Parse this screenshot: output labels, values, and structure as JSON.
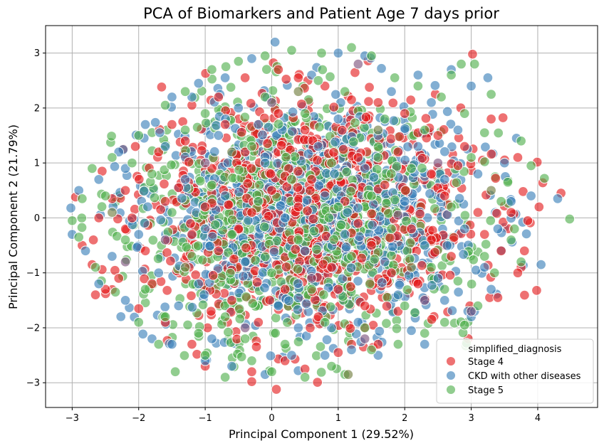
{
  "chart_data": {
    "type": "scatter",
    "title": "PCA of Biomarkers and Patient Age 7 days prior",
    "xlabel": "Principal Component 1 (29.52%)",
    "ylabel": "Principal Component 2 (21.79%)",
    "xlim": [
      -3.4,
      4.9
    ],
    "ylim": [
      -3.45,
      3.5
    ],
    "xticks": [
      -3,
      -2,
      -1,
      0,
      1,
      2,
      3,
      4
    ],
    "yticks": [
      -3,
      -2,
      -1,
      0,
      1,
      2,
      3
    ],
    "xtick_labels": [
      "−3",
      "−2",
      "−1",
      "0",
      "1",
      "2",
      "3",
      "4"
    ],
    "ytick_labels": [
      "−3",
      "−2",
      "−1",
      "0",
      "1",
      "2",
      "3"
    ],
    "grid": true,
    "legend": {
      "title": "simplified_diagnosis",
      "placement": "lower-right"
    },
    "series": [
      {
        "name": "Stage 4",
        "color": "#e41a1c",
        "points": [
          [
            4.35,
            0.45
          ],
          [
            4.02,
            0.2
          ],
          [
            3.78,
            0.48
          ],
          [
            3.6,
            0.1
          ],
          [
            3.85,
            -0.05
          ],
          [
            3.45,
            -0.6
          ],
          [
            3.8,
            -0.6
          ],
          [
            3.75,
            -0.9
          ],
          [
            3.4,
            -1.45
          ],
          [
            3.7,
            -1.0
          ],
          [
            3.02,
            2.98
          ],
          [
            3.3,
            1.8
          ],
          [
            3.7,
            1.1
          ],
          [
            2.98,
            -1.6
          ],
          [
            2.5,
            1.5
          ],
          [
            2.2,
            1.55
          ],
          [
            2.4,
            0.8
          ],
          [
            2.1,
            -0.2
          ],
          [
            2.2,
            -1.2
          ],
          [
            1.9,
            -1.7
          ],
          [
            1.6,
            -2.3
          ],
          [
            1.2,
            -2.3
          ],
          [
            1.0,
            -2.45
          ],
          [
            0.5,
            -2.75
          ],
          [
            0.2,
            -2.6
          ],
          [
            -0.3,
            -2.8
          ],
          [
            0.07,
            -3.12
          ],
          [
            -0.3,
            -2.98
          ],
          [
            -1.0,
            -2.7
          ],
          [
            -1.2,
            -2.3
          ],
          [
            -1.6,
            -1.9
          ],
          [
            -2.0,
            -1.65
          ],
          [
            -2.3,
            -1.1
          ],
          [
            -2.7,
            -0.85
          ],
          [
            -2.5,
            -1.3
          ],
          [
            -2.65,
            -1.4
          ],
          [
            -2.85,
            -0.5
          ],
          [
            -2.95,
            0.38
          ],
          [
            -2.55,
            0.85
          ],
          [
            -2.4,
            0.35
          ],
          [
            -2.2,
            0.5
          ],
          [
            -2.05,
            1.3
          ],
          [
            -1.7,
            1.2
          ],
          [
            -1.5,
            1.7
          ],
          [
            -1.2,
            2.05
          ],
          [
            -0.8,
            2.2
          ],
          [
            -0.4,
            2.55
          ],
          [
            0.1,
            2.7
          ],
          [
            0.4,
            2.55
          ],
          [
            0.8,
            2.4
          ],
          [
            1.2,
            2.15
          ],
          [
            1.6,
            2.1
          ],
          [
            -1.4,
            0.55
          ],
          [
            -1.6,
            0.3
          ],
          [
            -1.2,
            -0.3
          ],
          [
            -0.8,
            -0.6
          ],
          [
            -0.9,
            0.9
          ],
          [
            -0.4,
            1.2
          ],
          [
            0.0,
            0.5
          ],
          [
            0.3,
            -0.4
          ],
          [
            0.6,
            0.7
          ],
          [
            0.9,
            -0.9
          ],
          [
            1.1,
            0.3
          ],
          [
            1.3,
            1.1
          ],
          [
            1.5,
            -0.5
          ],
          [
            1.7,
            0.6
          ],
          [
            1.9,
            1.2
          ],
          [
            2.6,
            0.4
          ],
          [
            2.7,
            -0.7
          ],
          [
            2.8,
            0.95
          ],
          [
            -0.6,
            -1.5
          ],
          [
            -0.2,
            -1.9
          ],
          [
            0.2,
            -1.3
          ],
          [
            0.7,
            -1.8
          ],
          [
            1.0,
            -1.3
          ],
          [
            1.4,
            -1.6
          ],
          [
            -1.9,
            -0.6
          ],
          [
            -2.1,
            0.0
          ],
          [
            -1.0,
            0.2
          ],
          [
            0.5,
            1.6
          ],
          [
            0.1,
            1.9
          ],
          [
            -0.3,
            0.1
          ],
          [
            -0.5,
            -0.2
          ],
          [
            0.4,
            0.2
          ],
          [
            1.8,
            -1.0
          ],
          [
            2.4,
            -0.4
          ],
          [
            3.1,
            0.1
          ],
          [
            3.2,
            -0.3
          ],
          [
            -1.3,
            1.4
          ],
          [
            -0.7,
            1.7
          ],
          [
            1.3,
            -0.1
          ],
          [
            -1.8,
            -1.2
          ],
          [
            -2.6,
            0.0
          ],
          [
            2.0,
            1.9
          ],
          [
            2.9,
            1.3
          ]
        ]
      },
      {
        "name": "CKD with other diseases",
        "color": "#377eb8",
        "points": [
          [
            4.3,
            0.35
          ],
          [
            4.05,
            -0.85
          ],
          [
            3.68,
            1.45
          ],
          [
            3.5,
            1.0
          ],
          [
            3.25,
            2.55
          ],
          [
            3.0,
            2.4
          ],
          [
            2.7,
            2.7
          ],
          [
            2.2,
            2.6
          ],
          [
            1.65,
            2.72
          ],
          [
            1.4,
            2.95
          ],
          [
            1.0,
            3.0
          ],
          [
            0.05,
            3.2
          ],
          [
            -0.3,
            2.9
          ],
          [
            -0.7,
            2.55
          ],
          [
            -1.1,
            2.45
          ],
          [
            -1.5,
            2.2
          ],
          [
            -1.9,
            1.7
          ],
          [
            -2.3,
            1.2
          ],
          [
            -2.6,
            0.7
          ],
          [
            -2.9,
            0.5
          ],
          [
            -3.02,
            0.18
          ],
          [
            -3.0,
            -0.3
          ],
          [
            -2.8,
            -0.6
          ],
          [
            -2.6,
            -1.2
          ],
          [
            -2.2,
            -1.5
          ],
          [
            -1.8,
            -2.2
          ],
          [
            -1.5,
            -2.3
          ],
          [
            -1.0,
            -2.6
          ],
          [
            -0.6,
            -2.7
          ],
          [
            -0.1,
            -2.85
          ],
          [
            0.3,
            -2.5
          ],
          [
            0.8,
            -2.5
          ],
          [
            1.2,
            -2.4
          ],
          [
            1.6,
            -2.5
          ],
          [
            2.1,
            -2.05
          ],
          [
            2.3,
            -2.3
          ],
          [
            2.6,
            -1.5
          ],
          [
            2.95,
            -1.7
          ],
          [
            3.2,
            -0.9
          ],
          [
            3.4,
            -0.2
          ],
          [
            3.6,
            0.3
          ],
          [
            3.9,
            0.4
          ],
          [
            -1.6,
            1.3
          ],
          [
            -1.3,
            0.7
          ],
          [
            -1.0,
            -0.2
          ],
          [
            -0.7,
            0.4
          ],
          [
            -0.4,
            -0.8
          ],
          [
            -0.1,
            1.0
          ],
          [
            0.2,
            0.0
          ],
          [
            0.5,
            -0.6
          ],
          [
            0.8,
            0.4
          ],
          [
            1.1,
            -0.3
          ],
          [
            1.4,
            0.9
          ],
          [
            1.7,
            -0.8
          ],
          [
            2.0,
            0.3
          ],
          [
            2.3,
            -0.5
          ],
          [
            2.6,
            0.7
          ],
          [
            2.9,
            -0.2
          ],
          [
            -2.0,
            -0.3
          ],
          [
            -1.7,
            -1.0
          ],
          [
            -1.4,
            -1.6
          ],
          [
            -1.1,
            -1.2
          ],
          [
            -0.8,
            1.5
          ],
          [
            -0.5,
            2.0
          ],
          [
            -0.2,
            1.7
          ],
          [
            0.1,
            -1.6
          ],
          [
            0.4,
            -2.0
          ],
          [
            0.7,
            1.3
          ],
          [
            1.0,
            1.8
          ],
          [
            1.3,
            -1.9
          ],
          [
            1.6,
            1.5
          ],
          [
            1.9,
            -1.4
          ],
          [
            2.2,
            1.3
          ],
          [
            2.5,
            -1.1
          ],
          [
            2.8,
            1.6
          ],
          [
            3.1,
            0.8
          ],
          [
            3.0,
            -1.8
          ],
          [
            -2.4,
            -0.7
          ],
          [
            -2.2,
            0.9
          ],
          [
            -1.2,
            2.2
          ],
          [
            0.6,
            2.6
          ],
          [
            1.8,
            2.3
          ],
          [
            2.4,
            2.1
          ],
          [
            -0.9,
            -2.2
          ],
          [
            0.9,
            -2.0
          ],
          [
            3.3,
            -1.3
          ],
          [
            3.05,
            -1.7
          ]
        ]
      },
      {
        "name": "Stage 5",
        "color": "#4daf4a",
        "points": [
          [
            4.48,
            -0.02
          ],
          [
            4.1,
            0.72
          ],
          [
            3.9,
            0.95
          ],
          [
            3.75,
            1.4
          ],
          [
            3.75,
            -0.8
          ],
          [
            3.6,
            -0.4
          ],
          [
            3.55,
            0.65
          ],
          [
            3.3,
            2.25
          ],
          [
            3.2,
            1.55
          ],
          [
            3.05,
            2.8
          ],
          [
            2.85,
            2.8
          ],
          [
            2.7,
            2.6
          ],
          [
            2.55,
            2.2
          ],
          [
            2.2,
            2.4
          ],
          [
            1.85,
            2.55
          ],
          [
            1.5,
            2.95
          ],
          [
            1.2,
            3.1
          ],
          [
            0.75,
            3.0
          ],
          [
            0.3,
            3.05
          ],
          [
            -0.1,
            2.95
          ],
          [
            -0.5,
            2.85
          ],
          [
            -0.9,
            2.7
          ],
          [
            -1.3,
            2.3
          ],
          [
            -1.6,
            2.05
          ],
          [
            -2.0,
            1.5
          ],
          [
            -2.4,
            1.1
          ],
          [
            -2.7,
            0.9
          ],
          [
            -2.85,
            0.35
          ],
          [
            -3.0,
            -0.05
          ],
          [
            -2.9,
            -0.35
          ],
          [
            -2.65,
            -0.9
          ],
          [
            -2.35,
            -1.35
          ],
          [
            -2.0,
            -1.9
          ],
          [
            -1.7,
            -2.3
          ],
          [
            -1.45,
            -2.8
          ],
          [
            -1.0,
            -2.5
          ],
          [
            -0.7,
            -2.9
          ],
          [
            -0.3,
            -2.6
          ],
          [
            0.0,
            -2.8
          ],
          [
            0.5,
            -2.9
          ],
          [
            0.9,
            -2.7
          ],
          [
            1.1,
            -2.85
          ],
          [
            1.5,
            -2.4
          ],
          [
            1.9,
            -2.3
          ],
          [
            2.3,
            -2.1
          ],
          [
            2.6,
            -1.9
          ],
          [
            2.9,
            -1.95
          ],
          [
            3.1,
            -1.6
          ],
          [
            3.35,
            -1.0
          ],
          [
            -1.8,
            0.8
          ],
          [
            -1.5,
            0.1
          ],
          [
            -1.2,
            -0.7
          ],
          [
            -0.9,
            0.6
          ],
          [
            -0.6,
            -0.3
          ],
          [
            -0.3,
            1.3
          ],
          [
            0.0,
            -1.0
          ],
          [
            0.3,
            0.7
          ],
          [
            0.6,
            -1.3
          ],
          [
            0.9,
            1.0
          ],
          [
            1.2,
            -0.7
          ],
          [
            1.5,
            0.4
          ],
          [
            1.8,
            -0.2
          ],
          [
            2.1,
            0.9
          ],
          [
            2.4,
            -0.9
          ],
          [
            2.7,
            0.2
          ],
          [
            3.0,
            1.1
          ],
          [
            -2.2,
            -0.4
          ],
          [
            -1.9,
            -1.3
          ],
          [
            -1.6,
            -1.8
          ],
          [
            -1.3,
            1.6
          ],
          [
            -1.0,
            1.9
          ],
          [
            -0.7,
            -1.8
          ],
          [
            -0.4,
            -2.2
          ],
          [
            -0.1,
            2.2
          ],
          [
            0.2,
            -2.3
          ],
          [
            0.5,
            1.9
          ],
          [
            0.8,
            -1.9
          ],
          [
            1.1,
            2.3
          ],
          [
            1.4,
            -2.0
          ],
          [
            1.7,
            1.8
          ],
          [
            2.0,
            -1.6
          ],
          [
            2.3,
            1.6
          ],
          [
            2.6,
            -1.3
          ],
          [
            2.9,
            1.9
          ],
          [
            3.2,
            -0.7
          ],
          [
            3.45,
            0.3
          ],
          [
            -2.5,
            0.4
          ],
          [
            -2.1,
            1.0
          ],
          [
            -0.2,
            0.3
          ],
          [
            0.4,
            -0.4
          ],
          [
            1.0,
            0.2
          ],
          [
            1.6,
            1.1
          ],
          [
            -1.1,
            -2.1
          ],
          [
            0.7,
            2.5
          ],
          [
            3.65,
            -0.2
          ],
          [
            2.8,
            -1.15
          ]
        ]
      },
      {
        "name": "",
        "color": "#7a4f7a",
        "points": [
          [
            3.0,
            -1.7
          ],
          [
            2.3,
            -1.5
          ],
          [
            1.3,
            2.8
          ],
          [
            -0.4,
            -2.0
          ],
          [
            -2.2,
            -0.8
          ],
          [
            1.9,
            0.05
          ],
          [
            -1.0,
            1.0
          ],
          [
            0.6,
            -1.1
          ],
          [
            2.5,
            1.0
          ],
          [
            -1.6,
            -0.4
          ],
          [
            0.0,
            2.1
          ],
          [
            1.4,
            -2.2
          ]
        ]
      },
      {
        "name": "",
        "color": "#6e7a3a",
        "points": [
          [
            1.15,
            -2.85
          ],
          [
            0.4,
            2.3
          ],
          [
            -1.3,
            -0.9
          ],
          [
            2.1,
            -0.9
          ],
          [
            -0.6,
            1.2
          ],
          [
            3.3,
            0.5
          ],
          [
            1.6,
            1.6
          ],
          [
            -2.4,
            0.1
          ]
        ]
      }
    ]
  }
}
